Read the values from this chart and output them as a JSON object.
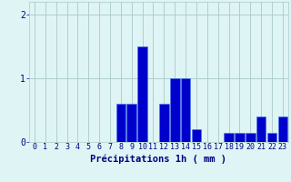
{
  "hours": [
    0,
    1,
    2,
    3,
    4,
    5,
    6,
    7,
    8,
    9,
    10,
    11,
    12,
    13,
    14,
    15,
    16,
    17,
    18,
    19,
    20,
    21,
    22,
    23
  ],
  "values": [
    0,
    0,
    0,
    0,
    0,
    0,
    0,
    0,
    0.6,
    0.6,
    1.5,
    0,
    0.6,
    1.0,
    1.0,
    0.2,
    0,
    0,
    0.15,
    0.15,
    0.15,
    0.4,
    0.15,
    0.4
  ],
  "bar_color": "#0000cc",
  "bar_edge_color": "#4477ee",
  "background_color": "#dff4f4",
  "grid_color": "#aacaca",
  "axis_label_color": "#000080",
  "text_color": "#000080",
  "xlabel": "Précipitations 1h ( mm )",
  "xlabel_fontsize": 7.5,
  "tick_fontsize": 6,
  "ytick_fontsize": 7,
  "yticks": [
    0,
    1,
    2
  ],
  "ylim": [
    0,
    2.2
  ],
  "xlim": [
    -0.5,
    23.5
  ]
}
